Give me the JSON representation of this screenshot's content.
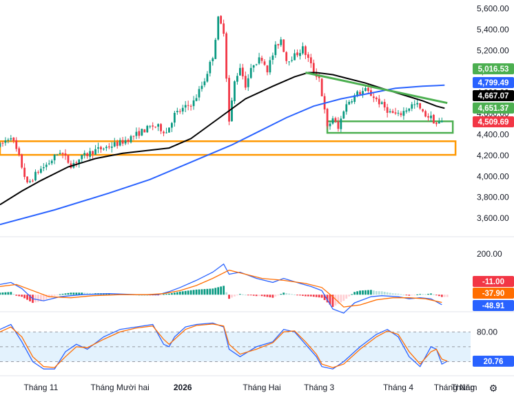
{
  "chart_data": [
    {
      "type": "candlestick",
      "title": "",
      "ylim": [
        3450,
        5650
      ],
      "y_ticks": [
        "5,600.00",
        "5,400.00",
        "5,200.00",
        "5,000.00",
        "4,800.00",
        "4,600.00",
        "4,400.00",
        "4,200.00",
        "4,000.00",
        "3,800.00",
        "3,600.00"
      ],
      "y_tick_values": [
        5600,
        5400,
        5200,
        5000,
        4800,
        4600,
        4400,
        4200,
        4000,
        3800,
        3600
      ],
      "x_range": [
        0,
        170
      ],
      "x_ticks": [
        {
          "label": "Tháng 11",
          "x": 15,
          "bold": false
        },
        {
          "label": "Tháng Mười hai",
          "x": 44,
          "bold": false
        },
        {
          "label": "2026",
          "x": 67,
          "bold": true
        },
        {
          "label": "Tháng Hai",
          "x": 96,
          "bold": false
        },
        {
          "label": "Tháng 3",
          "x": 117,
          "bold": false
        },
        {
          "label": "Tháng 4",
          "x": 146,
          "bold": false
        },
        {
          "label": "Tháng Năm",
          "x": 167,
          "bold": false
        },
        {
          "label": "Tháng",
          "x": 189,
          "bold": false
        }
      ],
      "candle_keypoints": [
        [
          0,
          4290
        ],
        [
          4,
          4390
        ],
        [
          7,
          4180
        ],
        [
          10,
          3920
        ],
        [
          14,
          4050
        ],
        [
          18,
          4130
        ],
        [
          22,
          4240
        ],
        [
          26,
          4110
        ],
        [
          30,
          4180
        ],
        [
          34,
          4240
        ],
        [
          38,
          4270
        ],
        [
          44,
          4320
        ],
        [
          48,
          4370
        ],
        [
          52,
          4430
        ],
        [
          56,
          4480
        ],
        [
          58,
          4470
        ],
        [
          61,
          4420
        ],
        [
          64,
          4590
        ],
        [
          67,
          4640
        ],
        [
          71,
          4710
        ],
        [
          75,
          4920
        ],
        [
          78,
          5150
        ],
        [
          80,
          5500
        ],
        [
          82,
          5390
        ],
        [
          84,
          4520
        ],
        [
          86,
          4900
        ],
        [
          88,
          5050
        ],
        [
          90,
          4870
        ],
        [
          93,
          5080
        ],
        [
          96,
          5130
        ],
        [
          98,
          5020
        ],
        [
          101,
          5230
        ],
        [
          103,
          5310
        ],
        [
          105,
          5110
        ],
        [
          108,
          5150
        ],
        [
          111,
          5220
        ],
        [
          113,
          5120
        ],
        [
          115,
          5000
        ],
        [
          117,
          4940
        ],
        [
          120,
          4460
        ],
        [
          122,
          4560
        ],
        [
          124,
          4450
        ],
        [
          126,
          4640
        ],
        [
          128,
          4720
        ],
        [
          131,
          4790
        ],
        [
          134,
          4820
        ],
        [
          137,
          4760
        ],
        [
          140,
          4680
        ],
        [
          143,
          4610
        ],
        [
          146,
          4580
        ],
        [
          148,
          4620
        ],
        [
          151,
          4680
        ],
        [
          153,
          4680
        ],
        [
          155,
          4600
        ],
        [
          158,
          4560
        ],
        [
          160,
          4500
        ],
        [
          162,
          4520
        ]
      ],
      "candle_colors": {
        "up": "#089981",
        "down": "#f23645"
      },
      "series": [
        {
          "type": "line",
          "color": "#000000",
          "points": [
            [
              0,
              3730
            ],
            [
              8,
              3860
            ],
            [
              15,
              3960
            ],
            [
              25,
              4090
            ],
            [
              35,
              4170
            ],
            [
              45,
              4220
            ],
            [
              55,
              4250
            ],
            [
              62,
              4270
            ],
            [
              70,
              4360
            ],
            [
              80,
              4550
            ],
            [
              90,
              4740
            ],
            [
              100,
              4860
            ],
            [
              108,
              4950
            ],
            [
              113,
              4990
            ],
            [
              116,
              4990
            ],
            [
              122,
              4970
            ],
            [
              128,
              4930
            ],
            [
              134,
              4890
            ],
            [
              140,
              4840
            ],
            [
              145,
              4800
            ],
            [
              150,
              4760
            ],
            [
              155,
              4720
            ],
            [
              160,
              4670
            ],
            [
              163,
              4650
            ]
          ]
        },
        {
          "type": "line",
          "color": "#2962ff",
          "points": [
            [
              0,
              3540
            ],
            [
              20,
              3680
            ],
            [
              40,
              3840
            ],
            [
              55,
              3970
            ],
            [
              65,
              4080
            ],
            [
              75,
              4190
            ],
            [
              85,
              4300
            ],
            [
              95,
              4430
            ],
            [
              105,
              4560
            ],
            [
              115,
              4670
            ],
            [
              125,
              4740
            ],
            [
              135,
              4790
            ],
            [
              145,
              4840
            ],
            [
              155,
              4860
            ],
            [
              163,
              4870
            ]
          ]
        },
        {
          "type": "line",
          "color": "#4caf50",
          "points": [
            [
              112,
              4990
            ],
            [
              164,
              4700
            ]
          ]
        }
      ],
      "zones": [
        {
          "color": "#4caf50",
          "y_from": 4525,
          "y_to": 4415,
          "x_from": 120,
          "x_to": 166
        },
        {
          "color": "#ff9800",
          "y_from": 4335,
          "y_to": 4205,
          "x_from": 0,
          "x_to": 167
        }
      ],
      "badges": [
        {
          "label": "5,016.53",
          "value": 5016.53,
          "bg": "#4caf50",
          "fg": "#ffffff"
        },
        {
          "label": "4,799.49",
          "value": 4799.49,
          "bg": "#2962ff",
          "fg": "#ffffff"
        },
        {
          "label": "4,667.07",
          "value": 4667.07,
          "bg": "#000000",
          "fg": "#ffffff"
        },
        {
          "label": "4,651.37",
          "value": 4651.37,
          "bg": "#4caf50",
          "fg": "#ffffff"
        },
        {
          "label": "4,509.69",
          "value": 4509.69,
          "bg": "#f23645",
          "fg": "#ffffff"
        }
      ]
    },
    {
      "type": "macd",
      "title": "",
      "ylim": [
        -80,
        270
      ],
      "y_ticks": [
        "200.00"
      ],
      "y_tick_values": [
        200
      ],
      "macd_points": [
        [
          0,
          50
        ],
        [
          4,
          60
        ],
        [
          8,
          30
        ],
        [
          12,
          -20
        ],
        [
          16,
          -30
        ],
        [
          22,
          -10
        ],
        [
          30,
          0
        ],
        [
          40,
          5
        ],
        [
          50,
          0
        ],
        [
          58,
          0
        ],
        [
          62,
          15
        ],
        [
          66,
          35
        ],
        [
          72,
          70
        ],
        [
          78,
          110
        ],
        [
          82,
          150
        ],
        [
          84,
          100
        ],
        [
          88,
          110
        ],
        [
          94,
          80
        ],
        [
          100,
          60
        ],
        [
          104,
          80
        ],
        [
          110,
          55
        ],
        [
          114,
          40
        ],
        [
          118,
          20
        ],
        [
          122,
          -70
        ],
        [
          126,
          -90
        ],
        [
          130,
          -40
        ],
        [
          136,
          -10
        ],
        [
          140,
          -5
        ],
        [
          146,
          -10
        ],
        [
          150,
          -20
        ],
        [
          154,
          -15
        ],
        [
          158,
          -20
        ],
        [
          162,
          -48.91
        ]
      ],
      "signal_points": [
        [
          0,
          40
        ],
        [
          6,
          50
        ],
        [
          12,
          20
        ],
        [
          18,
          -10
        ],
        [
          26,
          -15
        ],
        [
          34,
          -5
        ],
        [
          44,
          0
        ],
        [
          54,
          0
        ],
        [
          60,
          5
        ],
        [
          66,
          20
        ],
        [
          72,
          45
        ],
        [
          78,
          80
        ],
        [
          84,
          120
        ],
        [
          90,
          100
        ],
        [
          96,
          80
        ],
        [
          104,
          70
        ],
        [
          112,
          55
        ],
        [
          118,
          35
        ],
        [
          122,
          -10
        ],
        [
          126,
          -60
        ],
        [
          132,
          -50
        ],
        [
          138,
          -25
        ],
        [
          144,
          -15
        ],
        [
          150,
          -15
        ],
        [
          156,
          -20
        ],
        [
          162,
          -37.9
        ]
      ],
      "macd_color": "#2962ff",
      "signal_color": "#ff6d00",
      "hist_colors": {
        "pos_strong": "#089981",
        "pos_weak": "#b2dfdb",
        "neg_strong": "#f23645",
        "neg_weak": "#ffcdd2"
      },
      "badges": [
        {
          "label": "-11.00",
          "value": -11,
          "bg": "#f23645",
          "fg": "#ffffff"
        },
        {
          "label": "-37.90",
          "value": -37.9,
          "bg": "#ff6d00",
          "fg": "#ffffff"
        },
        {
          "label": "-48.91",
          "value": -48.91,
          "bg": "#2962ff",
          "fg": "#ffffff"
        }
      ]
    },
    {
      "type": "stochastic",
      "title": "",
      "ylim": [
        -3,
        118
      ],
      "y_ticks": [
        "80.00",
        "20.76"
      ],
      "y_tick_values": [
        80
      ],
      "bands": [
        80,
        50,
        20
      ],
      "band_fill": "#e3f2fd",
      "k_points": [
        [
          0,
          85
        ],
        [
          4,
          95
        ],
        [
          8,
          60
        ],
        [
          12,
          20
        ],
        [
          16,
          5
        ],
        [
          20,
          5
        ],
        [
          24,
          40
        ],
        [
          28,
          55
        ],
        [
          32,
          45
        ],
        [
          38,
          70
        ],
        [
          44,
          85
        ],
        [
          50,
          90
        ],
        [
          56,
          95
        ],
        [
          60,
          55
        ],
        [
          62,
          50
        ],
        [
          64,
          70
        ],
        [
          68,
          90
        ],
        [
          72,
          95
        ],
        [
          78,
          98
        ],
        [
          82,
          90
        ],
        [
          84,
          45
        ],
        [
          88,
          30
        ],
        [
          94,
          50
        ],
        [
          100,
          60
        ],
        [
          104,
          85
        ],
        [
          108,
          80
        ],
        [
          112,
          55
        ],
        [
          116,
          30
        ],
        [
          118,
          10
        ],
        [
          122,
          5
        ],
        [
          126,
          20
        ],
        [
          132,
          50
        ],
        [
          138,
          75
        ],
        [
          142,
          85
        ],
        [
          146,
          70
        ],
        [
          150,
          30
        ],
        [
          154,
          10
        ],
        [
          158,
          50
        ],
        [
          160,
          45
        ],
        [
          162,
          15
        ],
        [
          164,
          20.76
        ]
      ],
      "d_points": [
        [
          0,
          80
        ],
        [
          4,
          90
        ],
        [
          8,
          70
        ],
        [
          12,
          30
        ],
        [
          16,
          10
        ],
        [
          20,
          8
        ],
        [
          24,
          30
        ],
        [
          28,
          50
        ],
        [
          32,
          48
        ],
        [
          38,
          65
        ],
        [
          44,
          80
        ],
        [
          50,
          88
        ],
        [
          56,
          92
        ],
        [
          60,
          65
        ],
        [
          62,
          55
        ],
        [
          64,
          65
        ],
        [
          68,
          85
        ],
        [
          72,
          93
        ],
        [
          78,
          96
        ],
        [
          82,
          92
        ],
        [
          84,
          55
        ],
        [
          88,
          35
        ],
        [
          94,
          45
        ],
        [
          100,
          58
        ],
        [
          104,
          80
        ],
        [
          108,
          82
        ],
        [
          112,
          60
        ],
        [
          116,
          35
        ],
        [
          118,
          15
        ],
        [
          122,
          8
        ],
        [
          126,
          15
        ],
        [
          132,
          45
        ],
        [
          138,
          70
        ],
        [
          142,
          82
        ],
        [
          146,
          75
        ],
        [
          150,
          40
        ],
        [
          154,
          15
        ],
        [
          158,
          40
        ],
        [
          160,
          45
        ],
        [
          162,
          25
        ],
        [
          164,
          20.76
        ]
      ],
      "k_color": "#2962ff",
      "d_color": "#ff6d00",
      "badges": [
        {
          "label": "20.76",
          "value": 20.76,
          "bg": "#2962ff",
          "fg": "#ffffff"
        }
      ]
    }
  ],
  "icons": {
    "settings": "gear-icon"
  },
  "settings_glyph": "⚙"
}
